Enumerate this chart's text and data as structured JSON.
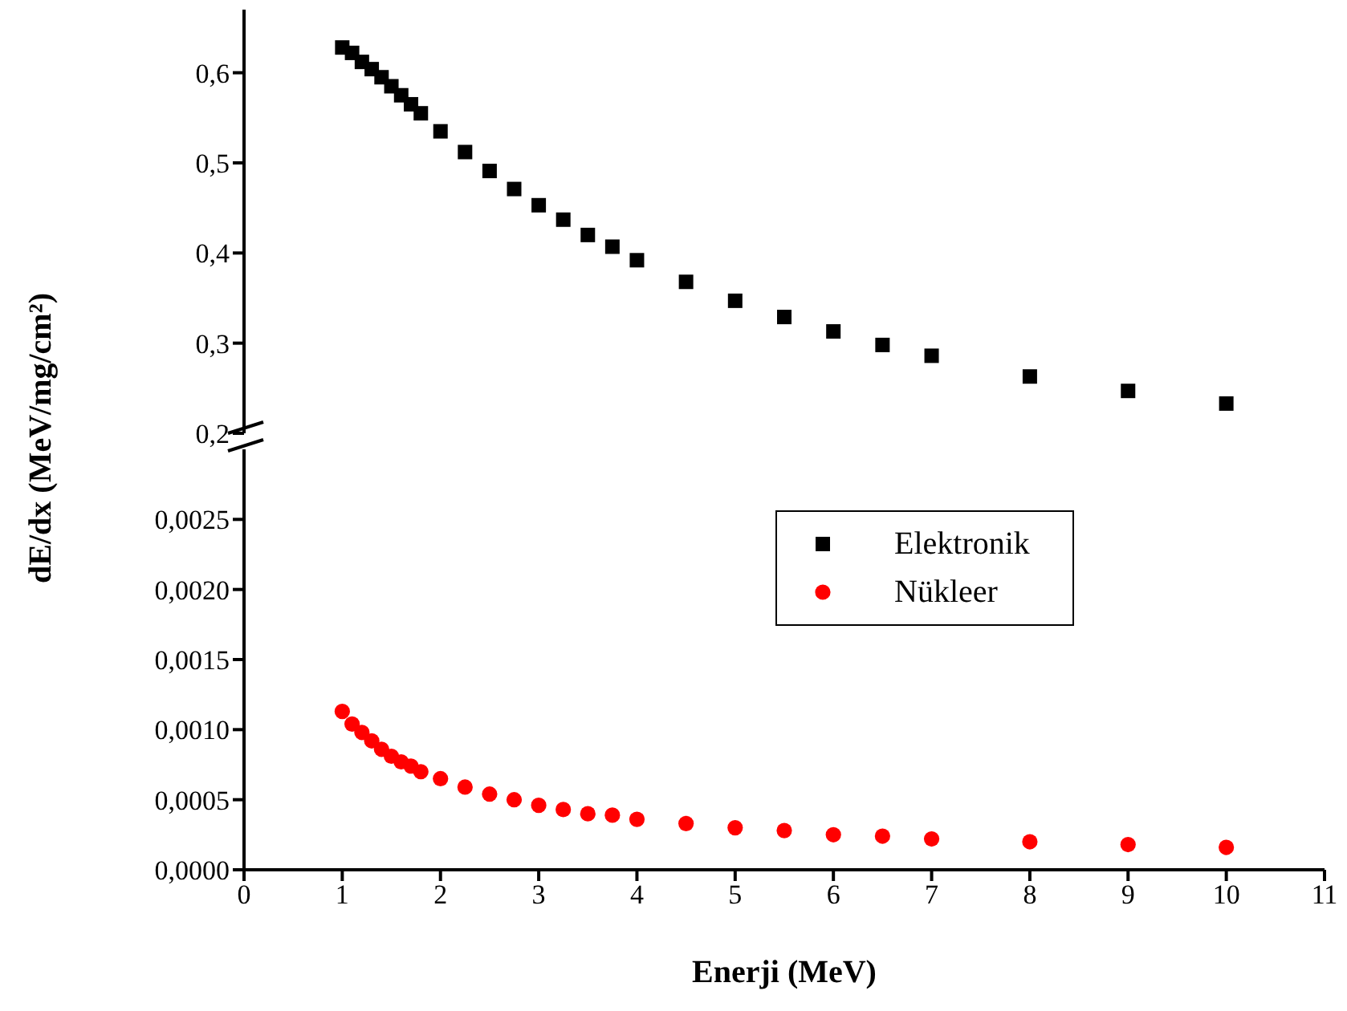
{
  "chart_data": [
    {
      "type": "scatter",
      "ylabel": "dE/dx (MeV/mg/cm²)",
      "x": [
        1,
        1.1,
        1.2,
        1.3,
        1.4,
        1.5,
        1.6,
        1.7,
        1.8,
        2,
        2.25,
        2.5,
        2.75,
        3,
        3.25,
        3.5,
        3.75,
        4,
        4.5,
        5,
        5.5,
        6,
        6.5,
        7,
        8,
        9,
        10
      ],
      "xlim": [
        0,
        11
      ],
      "ylim": [
        0.2,
        0.67
      ],
      "yticks": [
        {
          "value": 0.2,
          "label": "0,2"
        },
        {
          "value": 0.3,
          "label": "0,3"
        },
        {
          "value": 0.4,
          "label": "0,4"
        },
        {
          "value": 0.5,
          "label": "0,5"
        },
        {
          "value": 0.6,
          "label": "0,6"
        }
      ],
      "tick_labels": "y",
      "marker": "square",
      "grid": false,
      "legend": "right",
      "series": [
        {
          "name": "Elektronik",
          "color": "#000000",
          "values": [
            0.628,
            0.622,
            0.612,
            0.604,
            0.595,
            0.585,
            0.575,
            0.565,
            0.555,
            0.535,
            0.512,
            0.491,
            0.471,
            0.453,
            0.437,
            0.42,
            0.407,
            0.392,
            0.368,
            0.347,
            0.329,
            0.313,
            0.298,
            0.286,
            0.263,
            0.247,
            0.233
          ]
        }
      ]
    },
    {
      "type": "scatter",
      "xlabel": "Enerji (MeV)",
      "x": [
        1,
        1.1,
        1.2,
        1.3,
        1.4,
        1.5,
        1.6,
        1.7,
        1.8,
        2,
        2.25,
        2.5,
        2.75,
        3,
        3.25,
        3.5,
        3.75,
        4,
        4.5,
        5,
        5.5,
        6,
        6.5,
        7,
        8,
        9,
        10
      ],
      "xlim": [
        0,
        11
      ],
      "xticks": [
        0,
        1,
        2,
        3,
        4,
        5,
        6,
        7,
        8,
        9,
        10,
        11
      ],
      "ylim": [
        0,
        0.003
      ],
      "yticks": [
        {
          "value": 0,
          "label": "0,0000"
        },
        {
          "value": 0.0005,
          "label": "0,0005"
        },
        {
          "value": 0.001,
          "label": "0,0010"
        },
        {
          "value": 0.0015,
          "label": "0,0015"
        },
        {
          "value": 0.002,
          "label": "0,0020"
        },
        {
          "value": 0.0025,
          "label": "0,0025"
        }
      ],
      "marker": "circle",
      "grid": false,
      "legend": "right",
      "series": [
        {
          "name": "Nükleer",
          "color": "#ff0000",
          "values": [
            0.00113,
            0.00104,
            0.00098,
            0.00092,
            0.00086,
            0.00081,
            0.00077,
            0.00074,
            0.0007,
            0.00065,
            0.00059,
            0.00054,
            0.0005,
            0.00046,
            0.00043,
            0.0004,
            0.00039,
            0.00036,
            0.00033,
            0.0003,
            0.00028,
            0.00025,
            0.00024,
            0.00022,
            0.0002,
            0.00018,
            0.00016
          ]
        }
      ]
    }
  ]
}
